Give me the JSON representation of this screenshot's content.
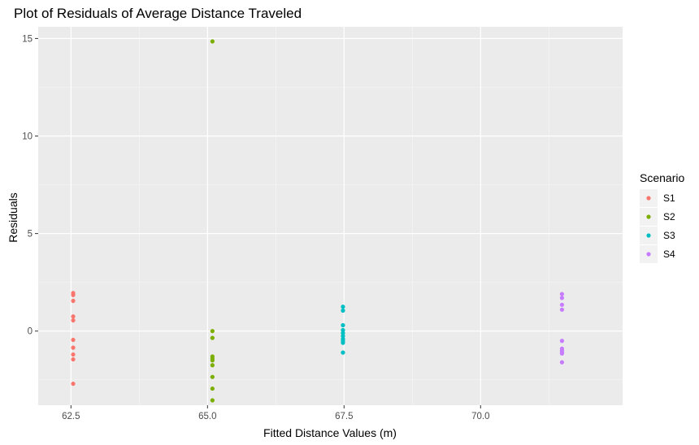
{
  "chart_data": {
    "type": "scatter",
    "title": "Plot of Residuals of Average Distance Traveled",
    "xlabel": "Fitted Distance Values (m)",
    "ylabel": "Residuals",
    "xlim": [
      61.9,
      72.6
    ],
    "ylim": [
      -3.8,
      15.6
    ],
    "x_ticks": [
      62.5,
      65.0,
      67.5,
      70.0
    ],
    "x_tick_labels": [
      "62.5",
      "65.0",
      "67.5",
      "70.0"
    ],
    "y_ticks": [
      0,
      5,
      10,
      15
    ],
    "y_tick_labels": [
      "0",
      "5",
      "10",
      "15"
    ],
    "grid": true,
    "legend": {
      "title": "Scenario",
      "placement": "right"
    },
    "series": [
      {
        "name": "S1",
        "color": "#F8766D",
        "x": 62.54,
        "y": [
          1.95,
          1.85,
          1.55,
          0.75,
          0.55,
          -0.45,
          -0.85,
          -1.2,
          -1.45,
          -2.7
        ]
      },
      {
        "name": "S2",
        "color": "#7CAE00",
        "x": 65.09,
        "y": [
          14.85,
          0.0,
          -0.35,
          -1.3,
          -1.4,
          -1.5,
          -1.75,
          -2.35,
          -2.95,
          -3.55
        ]
      },
      {
        "name": "S3",
        "color": "#00BFC4",
        "x": 67.48,
        "y": [
          1.25,
          1.05,
          0.3,
          0.05,
          -0.1,
          -0.25,
          -0.4,
          -0.5,
          -0.6,
          -1.1
        ]
      },
      {
        "name": "S4",
        "color": "#C77CFF",
        "x": 71.49,
        "y": [
          1.9,
          1.7,
          1.35,
          1.1,
          -0.5,
          -0.9,
          -1.0,
          -1.1,
          -1.15,
          -1.6
        ]
      }
    ]
  }
}
